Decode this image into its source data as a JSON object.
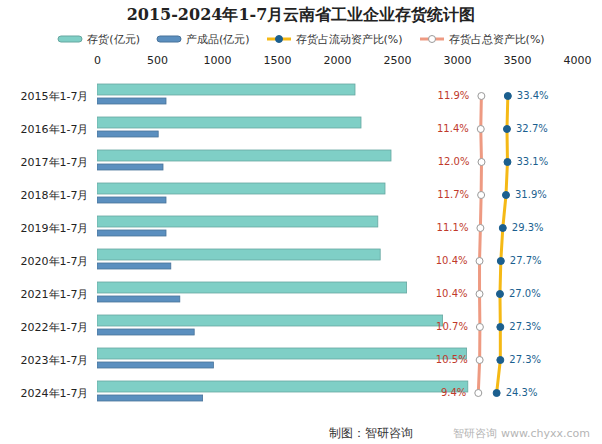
{
  "chart_data": {
    "type": "bar",
    "orientation": "horizontal",
    "title": "2015-2024年1-7月云南省工业企业存货统计图",
    "source": "制图：智研咨询",
    "watermark": [
      "智研咨询",
      "www.chyxx.com"
    ],
    "categories": [
      "2015年1-7月",
      "2016年1-7月",
      "2017年1-7月",
      "2018年1-7月",
      "2019年1-7月",
      "2020年1-7月",
      "2021年1-7月",
      "2022年1-7月",
      "2023年1-7月",
      "2024年1-7月"
    ],
    "xlim": [
      0,
      4000
    ],
    "xticks": [
      0,
      500,
      1000,
      1500,
      2000,
      2500,
      3000,
      3500,
      4000
    ],
    "y2lim": [
      -300,
      90
    ],
    "grid": false,
    "legend": "top",
    "series": [
      {
        "name": "存货(亿元)",
        "type": "bar",
        "color": "#7fcfc6",
        "values": [
          2150,
          2200,
          2450,
          2400,
          2340,
          2360,
          2580,
          2880,
          3080,
          3090
        ]
      },
      {
        "name": "产成品(亿元)",
        "type": "bar",
        "color": "#5b8fbf",
        "values": [
          575,
          510,
          550,
          575,
          575,
          615,
          690,
          810,
          970,
          880
        ]
      },
      {
        "name": "存货占流动资产比(%)",
        "type": "line",
        "axis": "y2",
        "color": "#f5b915",
        "marker": "circle",
        "data_labels": true,
        "values": [
          33.4,
          32.7,
          33.1,
          31.9,
          29.3,
          27.7,
          27.0,
          27.3,
          27.3,
          24.3
        ],
        "value_labels": [
          "33.4%",
          "32.7%",
          "33.1%",
          "31.9%",
          "29.3%",
          "27.7%",
          "27.0%",
          "27.3%",
          "27.3%",
          "24.3%"
        ]
      },
      {
        "name": "存货占总资产比(%)",
        "type": "line",
        "axis": "y2",
        "color": "#ee9a82",
        "marker": "circle",
        "data_labels": true,
        "values": [
          11.9,
          11.4,
          12.0,
          11.7,
          11.1,
          10.4,
          10.4,
          10.7,
          10.5,
          9.4
        ],
        "value_labels": [
          "11.9%",
          "11.4%",
          "12.0%",
          "11.7%",
          "11.1%",
          "10.4%",
          "10.4%",
          "10.7%",
          "10.5%",
          "9.4%"
        ]
      }
    ]
  }
}
